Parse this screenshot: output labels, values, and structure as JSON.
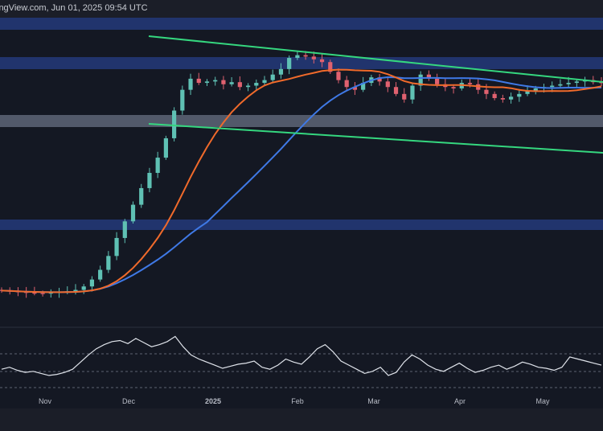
{
  "header": {
    "text": "ingView.com, Jun 01, 2025 09:54 UTC"
  },
  "colors": {
    "background": "#141823",
    "up_candle": "#5fc1b4",
    "down_candle": "#e0616f",
    "ma_fast": "#f06a2b",
    "ma_slow": "#3f79e6",
    "channel": "#35d77f",
    "zone_blue": "#233a7a",
    "zone_grey": "#5d6577",
    "rsi_line": "#dfe3ea"
  },
  "chart_data": [
    {
      "type": "candlestick",
      "title": "",
      "xlabel": "",
      "ylabel": "",
      "grid": false,
      "x_ticks": [
        "Nov",
        "Dec",
        "2025",
        "Feb",
        "Mar",
        "Apr",
        "May"
      ],
      "price_path_closes": [
        1000,
        995,
        990,
        985,
        982,
        980,
        985,
        990,
        995,
        1005,
        1030,
        1080,
        1150,
        1250,
        1380,
        1500,
        1620,
        1740,
        1850,
        1960,
        2100,
        2300,
        2450,
        2530,
        2500,
        2510,
        2520,
        2490,
        2505,
        2470,
        2480,
        2500,
        2520,
        2560,
        2600,
        2680,
        2700,
        2690,
        2670,
        2650,
        2580,
        2520,
        2470,
        2450,
        2500,
        2540,
        2510,
        2470,
        2420,
        2380,
        2480,
        2560,
        2530,
        2490,
        2470,
        2460,
        2500,
        2490,
        2450,
        2420,
        2390,
        2380,
        2400,
        2420,
        2440,
        2460,
        2470,
        2480,
        2490,
        2500,
        2510,
        2520,
        2505,
        2500
      ],
      "series": [
        {
          "name": "",
          "kind": "moving-average",
          "color": "#f06a2b"
        },
        {
          "name": "",
          "kind": "moving-average",
          "color": "#3f79e6"
        }
      ],
      "levels": {
        "resistance_zones": [
          "upper",
          "mid-upper"
        ],
        "support_zone_grey": "mid",
        "support_zone_blue": "lower"
      },
      "channel": "descending"
    },
    {
      "type": "line",
      "title": "",
      "xlabel": "",
      "ylabel": "",
      "note_ref_levels": "dashed upper and lower guide lines",
      "values": [
        48,
        50,
        47,
        45,
        46,
        44,
        42,
        43,
        45,
        48,
        55,
        62,
        68,
        72,
        75,
        76,
        73,
        78,
        74,
        70,
        72,
        75,
        80,
        70,
        62,
        58,
        55,
        52,
        49,
        51,
        53,
        54,
        56,
        50,
        48,
        52,
        58,
        55,
        53,
        60,
        68,
        72,
        65,
        56,
        52,
        48,
        44,
        46,
        50,
        42,
        45,
        55,
        62,
        58,
        52,
        48,
        46,
        50,
        54,
        49,
        45,
        47,
        50,
        52,
        48,
        51,
        55,
        53,
        50,
        49,
        47,
        50,
        60,
        58,
        56,
        54,
        52
      ]
    }
  ]
}
